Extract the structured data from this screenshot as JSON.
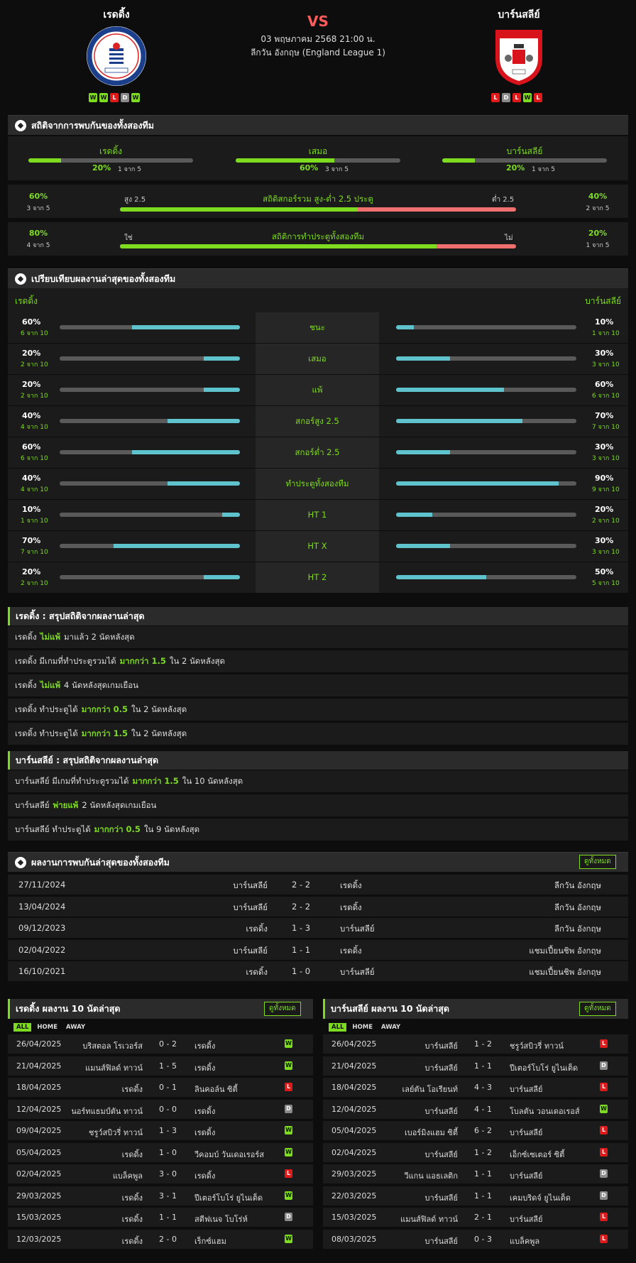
{
  "header": {
    "home_name": "เรดดิ้ง",
    "away_name": "บาร์นสลีย์",
    "vs": "VS",
    "date": "03 พฤษภาคม 2568 21:00 น.",
    "league": "ลีกวัน อังกฤษ (England League 1)",
    "home_form": [
      "W",
      "W",
      "L",
      "D",
      "W"
    ],
    "away_form": [
      "L",
      "D",
      "L",
      "W",
      "L"
    ],
    "home_logo_text": "READING FOOTBALL CLUB · EST 1871",
    "away_logo_text": "BARNSLEY FC · 1887"
  },
  "h2h_stats": {
    "title": "สถิติจากการพบกันของทั้งสองทีม",
    "cols": [
      {
        "label": "เรดดิ้ง",
        "pct": "20%",
        "sub": "1 จาก 5",
        "value": 0.2
      },
      {
        "label": "เสมอ",
        "pct": "60%",
        "sub": "3 จาก 5",
        "value": 0.6
      },
      {
        "label": "บาร์นสลีย์",
        "pct": "20%",
        "sub": "1 จาก 5",
        "value": 0.2
      }
    ],
    "totals": [
      {
        "left_pct": "60%",
        "left_sub": "3 จาก 5",
        "left_tag": "สูง 2.5",
        "title": "สถิติสกอร์รวม สูง-ต่ำ 2.5 ประตู",
        "right_tag": "ต่ำ 2.5",
        "right_pct": "40%",
        "right_sub": "2 จาก 5",
        "value": 0.6
      },
      {
        "left_pct": "80%",
        "left_sub": "4 จาก 5",
        "left_tag": "ใช่",
        "title": "สถิติการทำประตูทั้งสองทีม",
        "right_tag": "ไม่",
        "right_pct": "20%",
        "right_sub": "1 จาก 5",
        "value": 0.8
      }
    ]
  },
  "compare": {
    "title": "เปรียบเทียบผลงานล่าสุดของทั้งสองทีม",
    "home_label": "เรดดิ้ง",
    "away_label": "บาร์นสลีย์",
    "rows": [
      {
        "label": "ชนะ",
        "h_pct": "60%",
        "h_sub": "6 จาก 10",
        "h_val": 0.6,
        "a_pct": "10%",
        "a_sub": "1 จาก 10",
        "a_val": 0.1
      },
      {
        "label": "เสมอ",
        "h_pct": "20%",
        "h_sub": "2 จาก 10",
        "h_val": 0.2,
        "a_pct": "30%",
        "a_sub": "3 จาก 10",
        "a_val": 0.3
      },
      {
        "label": "แพ้",
        "h_pct": "20%",
        "h_sub": "2 จาก 10",
        "h_val": 0.2,
        "a_pct": "60%",
        "a_sub": "6 จาก 10",
        "a_val": 0.6
      },
      {
        "label": "สกอร์สูง 2.5",
        "h_pct": "40%",
        "h_sub": "4 จาก 10",
        "h_val": 0.4,
        "a_pct": "70%",
        "a_sub": "7 จาก 10",
        "a_val": 0.7
      },
      {
        "label": "สกอร์ต่ำ 2.5",
        "h_pct": "60%",
        "h_sub": "6 จาก 10",
        "h_val": 0.6,
        "a_pct": "30%",
        "a_sub": "3 จาก 10",
        "a_val": 0.3
      },
      {
        "label": "ทำประตูทั้งสองทีม",
        "h_pct": "40%",
        "h_sub": "4 จาก 10",
        "h_val": 0.4,
        "a_pct": "90%",
        "a_sub": "9 จาก 10",
        "a_val": 0.9
      },
      {
        "label": "HT 1",
        "h_pct": "10%",
        "h_sub": "1 จาก 10",
        "h_val": 0.1,
        "a_pct": "20%",
        "a_sub": "2 จาก 10",
        "a_val": 0.2
      },
      {
        "label": "HT X",
        "h_pct": "70%",
        "h_sub": "7 จาก 10",
        "h_val": 0.7,
        "a_pct": "30%",
        "a_sub": "3 จาก 10",
        "a_val": 0.3
      },
      {
        "label": "HT 2",
        "h_pct": "20%",
        "h_sub": "2 จาก 10",
        "h_val": 0.2,
        "a_pct": "50%",
        "a_sub": "5 จาก 10",
        "a_val": 0.5
      }
    ]
  },
  "home_summary": {
    "title": "เรดดิ้ง : สรุปสถิติจากผลงานล่าสุด",
    "rows": [
      {
        "pre": "เรดดิ้ง",
        "hl": "ไม่แพ้",
        "post": "มาแล้ว 2 นัดหลังสุด"
      },
      {
        "pre": "เรดดิ้ง มีเกมที่ทำประตูรวมได้",
        "hl": "มากกว่า 1.5",
        "post": "ใน 2 นัดหลังสุด"
      },
      {
        "pre": "เรดดิ้ง",
        "hl": "ไม่แพ้",
        "post": "4 นัดหลังสุดเกมเยือน"
      },
      {
        "pre": "เรดดิ้ง ทำประตูได้",
        "hl": "มากกว่า 0.5",
        "post": "ใน 2 นัดหลังสุด"
      },
      {
        "pre": "เรดดิ้ง ทำประตูได้",
        "hl": "มากกว่า 1.5",
        "post": "ใน 2 นัดหลังสุด"
      }
    ]
  },
  "away_summary": {
    "title": "บาร์นสลีย์ : สรุปสถิติจากผลงานล่าสุด",
    "rows": [
      {
        "pre": "บาร์นสลีย์ มีเกมที่ทำประตูรวมได้",
        "hl": "มากกว่า 1.5",
        "post": "ใน 10 นัดหลังสุด"
      },
      {
        "pre": "บาร์นสลีย์",
        "hl": "พ่ายแพ้",
        "post": "2 นัดหลังสุดเกมเยือน"
      },
      {
        "pre": "บาร์นสลีย์ ทำประตูได้",
        "hl": "มากกว่า 0.5",
        "post": "ใน 9 นัดหลังสุด"
      }
    ]
  },
  "h2h_matches": {
    "title": "ผลงานการพบกันล่าสุดของทั้งสองทีม",
    "view_all": "ดูทั้งหมด",
    "rows": [
      {
        "date": "27/11/2024",
        "home": "บาร์นสลีย์",
        "score": "2 - 2",
        "away": "เรดดิ้ง",
        "league": "ลีกวัน อังกฤษ"
      },
      {
        "date": "13/04/2024",
        "home": "บาร์นสลีย์",
        "score": "2 - 2",
        "away": "เรดดิ้ง",
        "league": "ลีกวัน อังกฤษ"
      },
      {
        "date": "09/12/2023",
        "home": "เรดดิ้ง",
        "score": "1 - 3",
        "away": "บาร์นสลีย์",
        "league": "ลีกวัน อังกฤษ"
      },
      {
        "date": "02/04/2022",
        "home": "บาร์นสลีย์",
        "score": "1 - 1",
        "away": "เรดดิ้ง",
        "league": "แชมเปี้ยนชิพ อังกฤษ"
      },
      {
        "date": "16/10/2021",
        "home": "เรดดิ้ง",
        "score": "1 - 0",
        "away": "บาร์นสลีย์",
        "league": "แชมเปี้ยนชิพ อังกฤษ"
      }
    ]
  },
  "recent": {
    "tabs": [
      "ALL",
      "HOME",
      "AWAY"
    ],
    "view_all": "ดูทั้งหมด",
    "home": {
      "title": "เรดดิ้ง ผลงาน 10 นัดล่าสุด",
      "rows": [
        {
          "date": "26/04/2025",
          "home": "บริสตอล โรเวอร์ส",
          "score": "0 - 2",
          "away": "เรดดิ้ง",
          "res": "W"
        },
        {
          "date": "21/04/2025",
          "home": "แมนส์ฟิลด์ ทาวน์",
          "score": "1 - 5",
          "away": "เรดดิ้ง",
          "res": "W"
        },
        {
          "date": "18/04/2025",
          "home": "เรดดิ้ง",
          "score": "0 - 1",
          "away": "ลินคอล์น ซิตี้",
          "res": "L"
        },
        {
          "date": "12/04/2025",
          "home": "นอร์ทแธมป์ตัน ทาวน์",
          "score": "0 - 0",
          "away": "เรดดิ้ง",
          "res": "D"
        },
        {
          "date": "09/04/2025",
          "home": "ชรูว์สบิวรี่ ทาวน์",
          "score": "1 - 3",
          "away": "เรดดิ้ง",
          "res": "W"
        },
        {
          "date": "05/04/2025",
          "home": "เรดดิ้ง",
          "score": "1 - 0",
          "away": "วีคอมบ์ วันเดอเรอร์ส",
          "res": "W"
        },
        {
          "date": "02/04/2025",
          "home": "แบล็คพูล",
          "score": "3 - 0",
          "away": "เรดดิ้ง",
          "res": "L"
        },
        {
          "date": "29/03/2025",
          "home": "เรดดิ้ง",
          "score": "3 - 1",
          "away": "ปีเตอร์โบโร่ ยูไนเต็ด",
          "res": "W"
        },
        {
          "date": "15/03/2025",
          "home": "เรดดิ้ง",
          "score": "1 - 1",
          "away": "สตีฟเนจ โบโร่ห์",
          "res": "D"
        },
        {
          "date": "12/03/2025",
          "home": "เรดดิ้ง",
          "score": "2 - 0",
          "away": "เร็กซ์แฮม",
          "res": "W"
        }
      ]
    },
    "away": {
      "title": "บาร์นสลีย์ ผลงาน 10 นัดล่าสุด",
      "rows": [
        {
          "date": "26/04/2025",
          "home": "บาร์นสลีย์",
          "score": "1 - 2",
          "away": "ชรูว์สบิวรี่ ทาวน์",
          "res": "L"
        },
        {
          "date": "21/04/2025",
          "home": "บาร์นสลีย์",
          "score": "1 - 1",
          "away": "ปีเตอร์โบโร่ ยูไนเต็ด",
          "res": "D"
        },
        {
          "date": "18/04/2025",
          "home": "เลย์ตัน โอเรียนท์",
          "score": "4 - 3",
          "away": "บาร์นสลีย์",
          "res": "L"
        },
        {
          "date": "12/04/2025",
          "home": "บาร์นสลีย์",
          "score": "4 - 1",
          "away": "โบลตัน วอนเดอเรอส์",
          "res": "W"
        },
        {
          "date": "05/04/2025",
          "home": "เบอร์มิงแฮม ซิตี้",
          "score": "6 - 2",
          "away": "บาร์นสลีย์",
          "res": "L"
        },
        {
          "date": "02/04/2025",
          "home": "บาร์นสลีย์",
          "score": "1 - 2",
          "away": "เอ็กซ์เซเตอร์ ซิตี้",
          "res": "L"
        },
        {
          "date": "29/03/2025",
          "home": "วีแกน แอธเลติก",
          "score": "1 - 1",
          "away": "บาร์นสลีย์",
          "res": "D"
        },
        {
          "date": "22/03/2025",
          "home": "บาร์นสลีย์",
          "score": "1 - 1",
          "away": "เคมบริดจ์ ยูไนเต็ด",
          "res": "D"
        },
        {
          "date": "15/03/2025",
          "home": "แมนส์ฟิลด์ ทาวน์",
          "score": "2 - 1",
          "away": "บาร์นสลีย์",
          "res": "L"
        },
        {
          "date": "08/03/2025",
          "home": "บาร์นสลีย์",
          "score": "0 - 3",
          "away": "แบล็คพูล",
          "res": "L"
        }
      ]
    }
  },
  "colors": {
    "accent": "#7ddc1f",
    "loss": "#e01a1a",
    "bar_home": "#5fc3cd",
    "bar_red": "#f07070"
  }
}
